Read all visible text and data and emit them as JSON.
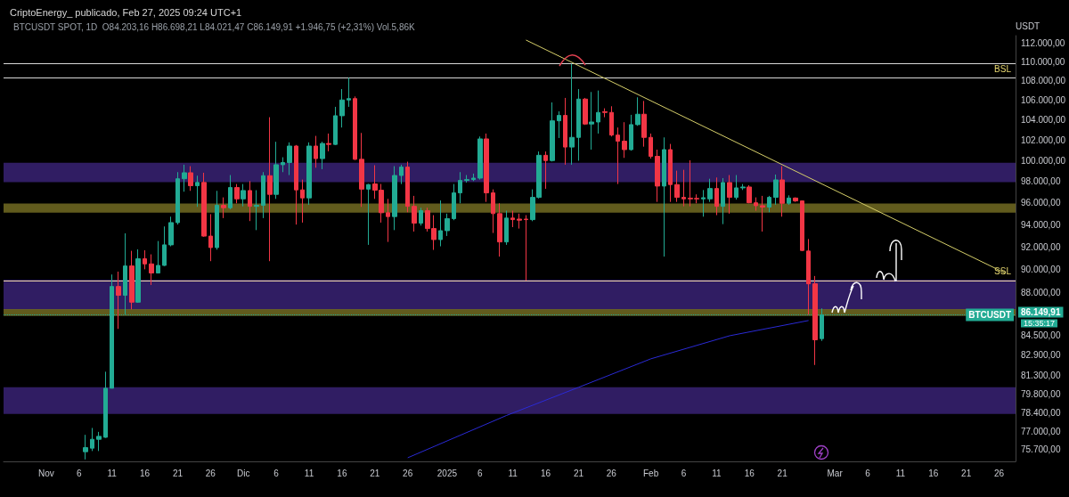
{
  "chart_data": {
    "type": "candlestick",
    "title": "CriptoEnergy_ publicado, Feb 27, 2025 09:24 UTC+1",
    "subtitle": "BTCUSDT SPOT, 1D  O84.203,16 H86.698,21 L84.021,47 C86.149,91 +1.946,75 (+2,31%) Vol.5,86K",
    "ylabel": "USDT",
    "annotations": [
      "BTCUSDT",
      "15:35:17"
    ],
    "log": true,
    "xlim": [
      "2024-10-25T12:00",
      "2025-03-28T12:00"
    ],
    "xticks": [
      {
        "value": "2024-11-01",
        "label": "Nov"
      },
      {
        "value": "2024-11-06",
        "label": "6"
      },
      {
        "value": "2024-11-11",
        "label": "11"
      },
      {
        "value": "2024-11-16",
        "label": "16"
      },
      {
        "value": "2024-11-21",
        "label": "21"
      },
      {
        "value": "2024-11-26",
        "label": "26"
      },
      {
        "value": "2024-12-01",
        "label": "Dic"
      },
      {
        "value": "2024-12-06",
        "label": "6"
      },
      {
        "value": "2024-12-11",
        "label": "11"
      },
      {
        "value": "2024-12-16",
        "label": "16"
      },
      {
        "value": "2024-12-21",
        "label": "21"
      },
      {
        "value": "2024-12-26",
        "label": "26"
      },
      {
        "value": "2025-01-01",
        "label": "2025"
      },
      {
        "value": "2025-01-06",
        "label": "6"
      },
      {
        "value": "2025-01-11",
        "label": "11"
      },
      {
        "value": "2025-01-16",
        "label": "16"
      },
      {
        "value": "2025-01-21",
        "label": "21"
      },
      {
        "value": "2025-01-26",
        "label": "26"
      },
      {
        "value": "2025-02-01",
        "label": "Feb"
      },
      {
        "value": "2025-02-06",
        "label": "6"
      },
      {
        "value": "2025-02-11",
        "label": "11"
      },
      {
        "value": "2025-02-16",
        "label": "16"
      },
      {
        "value": "2025-02-21",
        "label": "21"
      },
      {
        "value": "2025-03-01",
        "label": "Mar"
      },
      {
        "value": "2025-03-06",
        "label": "6"
      },
      {
        "value": "2025-03-11",
        "label": "11"
      },
      {
        "value": "2025-03-16",
        "label": "16"
      },
      {
        "value": "2025-03-21",
        "label": "21"
      },
      {
        "value": "2025-03-26",
        "label": "26"
      }
    ],
    "ylim": [
      74800,
      112800
    ],
    "yticks": [
      {
        "value": 112000,
        "label": "112.000,00"
      },
      {
        "value": 110000,
        "label": "110.000,00"
      },
      {
        "value": 108000,
        "label": "108.000,00"
      },
      {
        "value": 106000,
        "label": "106.000,00"
      },
      {
        "value": 104000,
        "label": "104.000,00"
      },
      {
        "value": 102000,
        "label": "102.000,00"
      },
      {
        "value": 100000,
        "label": "100.000,00"
      },
      {
        "value": 98000,
        "label": "98.000,00"
      },
      {
        "value": 96000,
        "label": "96.000,00"
      },
      {
        "value": 94000,
        "label": "94.000,00"
      },
      {
        "value": 92000,
        "label": "92.000,00"
      },
      {
        "value": 90000,
        "label": "90.000,00"
      },
      {
        "value": 88000,
        "label": "88.000,00"
      },
      {
        "value": 84500,
        "label": "84.500,00"
      },
      {
        "value": 82900,
        "label": "82.900,00"
      },
      {
        "value": 81300,
        "label": "81.300,00"
      },
      {
        "value": 79800,
        "label": "79.800,00"
      },
      {
        "value": 78400,
        "label": "78.400,00"
      },
      {
        "value": 77000,
        "label": "77.000,00"
      },
      {
        "value": 75700,
        "label": "75.700,00"
      }
    ],
    "ref_lines": [
      {
        "axis": "y",
        "value": 109770,
        "color": "#d8d8d8"
      },
      {
        "axis": "y",
        "value": 108310,
        "label": "BSL",
        "color": "#d8d8d8"
      },
      {
        "axis": "y",
        "value": 89060,
        "label": "SSL",
        "color": "#f0d8a8"
      },
      {
        "axis": "y",
        "value": 86149.91,
        "label": "86.149,91",
        "color": "#22ab94",
        "line_style": "dotted"
      }
    ],
    "bands": [
      {
        "axis": "y",
        "from": 97920,
        "to": 99780,
        "color": "#35206e"
      },
      {
        "axis": "y",
        "from": 86560,
        "to": 89140,
        "color": "#35206e"
      },
      {
        "axis": "y",
        "from": 78300,
        "to": 80340,
        "color": "#35206e"
      },
      {
        "axis": "y",
        "from": 95080,
        "to": 95920,
        "color": "#6b6520"
      },
      {
        "axis": "y",
        "from": 86060,
        "to": 86650,
        "color": "#6b6520"
      }
    ],
    "x": [
      "2024-11-07",
      "2024-11-08",
      "2024-11-09",
      "2024-11-10",
      "2024-11-11",
      "2024-11-12",
      "2024-11-13",
      "2024-11-14",
      "2024-11-15",
      "2024-11-16",
      "2024-11-17",
      "2024-11-18",
      "2024-11-19",
      "2024-11-20",
      "2024-11-21",
      "2024-11-22",
      "2024-11-23",
      "2024-11-24",
      "2024-11-25",
      "2024-11-26",
      "2024-11-27",
      "2024-11-28",
      "2024-11-29",
      "2024-11-30",
      "2024-12-01",
      "2024-12-02",
      "2024-12-03",
      "2024-12-04",
      "2024-12-05",
      "2024-12-06",
      "2024-12-07",
      "2024-12-08",
      "2024-12-09",
      "2024-12-10",
      "2024-12-11",
      "2024-12-12",
      "2024-12-13",
      "2024-12-14",
      "2024-12-15",
      "2024-12-16",
      "2024-12-17",
      "2024-12-18",
      "2024-12-19",
      "2024-12-20",
      "2024-12-21",
      "2024-12-22",
      "2024-12-23",
      "2024-12-24",
      "2024-12-25",
      "2024-12-26",
      "2024-12-27",
      "2024-12-28",
      "2024-12-29",
      "2024-12-30",
      "2024-12-31",
      "2025-01-01",
      "2025-01-02",
      "2025-01-03",
      "2025-01-04",
      "2025-01-05",
      "2025-01-06",
      "2025-01-07",
      "2025-01-08",
      "2025-01-09",
      "2025-01-10",
      "2025-01-11",
      "2025-01-12",
      "2025-01-13",
      "2025-01-14",
      "2025-01-15",
      "2025-01-16",
      "2025-01-17",
      "2025-01-18",
      "2025-01-19",
      "2025-01-20",
      "2025-01-21",
      "2025-01-22",
      "2025-01-23",
      "2025-01-24",
      "2025-01-25",
      "2025-01-26",
      "2025-01-27",
      "2025-01-28",
      "2025-01-29",
      "2025-01-30",
      "2025-01-31",
      "2025-02-01",
      "2025-02-02",
      "2025-02-03",
      "2025-02-04",
      "2025-02-05",
      "2025-02-06",
      "2025-02-07",
      "2025-02-08",
      "2025-02-09",
      "2025-02-10",
      "2025-02-11",
      "2025-02-12",
      "2025-02-13",
      "2025-02-14",
      "2025-02-15",
      "2025-02-16",
      "2025-02-17",
      "2025-02-18",
      "2025-02-19",
      "2025-02-20",
      "2025-02-21",
      "2025-02-22",
      "2025-02-23",
      "2025-02-24",
      "2025-02-25",
      "2025-02-26",
      "2025-02-27"
    ],
    "ohlc": [
      [
        75500,
        76740,
        74940,
        75800
      ],
      [
        75760,
        77250,
        75550,
        76410
      ],
      [
        76410,
        76960,
        75550,
        76630
      ],
      [
        76560,
        81560,
        76520,
        80270
      ],
      [
        80270,
        89580,
        80270,
        88550
      ],
      [
        88550,
        89830,
        85000,
        87800
      ],
      [
        87800,
        93210,
        86180,
        90320
      ],
      [
        90320,
        91650,
        86620,
        87220
      ],
      [
        87220,
        91780,
        87170,
        90950
      ],
      [
        90950,
        91700,
        90030,
        90500
      ],
      [
        90500,
        91340,
        88680,
        89710
      ],
      [
        89710,
        92520,
        89710,
        90370
      ],
      [
        90370,
        93830,
        90320,
        92180
      ],
      [
        92180,
        94720,
        92050,
        94180
      ],
      [
        94180,
        98880,
        94000,
        98250
      ],
      [
        98250,
        99590,
        97030,
        98820
      ],
      [
        98820,
        99450,
        97110,
        97590
      ],
      [
        97590,
        98540,
        95620,
        97900
      ],
      [
        97900,
        98820,
        92900,
        92960
      ],
      [
        92960,
        94950,
        90740,
        91940
      ],
      [
        91940,
        97110,
        91750,
        95760
      ],
      [
        95760,
        96500,
        94590,
        95540
      ],
      [
        95540,
        98600,
        95400,
        97420
      ],
      [
        97420,
        97750,
        95950,
        96360
      ],
      [
        96360,
        97750,
        95670,
        97140
      ],
      [
        97140,
        98030,
        94320,
        95670
      ],
      [
        95670,
        97170,
        93500,
        95760
      ],
      [
        95760,
        98880,
        94590,
        98540
      ],
      [
        98540,
        104260,
        90740,
        96780
      ],
      [
        96780,
        101820,
        96360,
        99590
      ],
      [
        99590,
        100310,
        98880,
        99800
      ],
      [
        99800,
        101760,
        98600,
        101400
      ],
      [
        101400,
        101500,
        94000,
        97200
      ],
      [
        97200,
        98170,
        94180,
        96450
      ],
      [
        96450,
        101760,
        95810,
        101400
      ],
      [
        101400,
        102400,
        99300,
        100180
      ],
      [
        100180,
        101820,
        99160,
        101650
      ],
      [
        101650,
        102630,
        100890,
        101560
      ],
      [
        101560,
        105310,
        101500,
        104410
      ],
      [
        104410,
        107130,
        103230,
        106010
      ],
      [
        106010,
        108310,
        105310,
        106150
      ],
      [
        106150,
        106370,
        100050,
        100110
      ],
      [
        100110,
        102690,
        95620,
        97270
      ],
      [
        97270,
        97760,
        92180,
        97700
      ],
      [
        97760,
        99540,
        96360,
        97170
      ],
      [
        97170,
        97760,
        94180,
        95080
      ],
      [
        95080,
        96360,
        92440,
        94730
      ],
      [
        94730,
        99450,
        93500,
        98560
      ],
      [
        98560,
        99590,
        97750,
        99360
      ],
      [
        99360,
        99880,
        95130,
        95670
      ],
      [
        95670,
        96640,
        93370,
        94130
      ],
      [
        94130,
        95540,
        93910,
        95270
      ],
      [
        95270,
        95540,
        93370,
        93640
      ],
      [
        93640,
        94860,
        91730,
        92650
      ],
      [
        92650,
        96220,
        92050,
        93450
      ],
      [
        93450,
        95000,
        92970,
        94540
      ],
      [
        94540,
        97750,
        94400,
        96920
      ],
      [
        96920,
        98880,
        95950,
        98090
      ],
      [
        98090,
        98600,
        97890,
        98170
      ],
      [
        98170,
        98740,
        98030,
        98310
      ],
      [
        98310,
        102340,
        98170,
        102100
      ],
      [
        102100,
        102630,
        96080,
        96920
      ],
      [
        96920,
        97250,
        93240,
        95000
      ],
      [
        95000,
        95950,
        91140,
        92440
      ],
      [
        92440,
        95270,
        92180,
        94590
      ],
      [
        94590,
        95270,
        93770,
        94450
      ],
      [
        94500,
        95000,
        93640,
        94400
      ],
      [
        94500,
        94860,
        89060,
        94450
      ],
      [
        94450,
        97250,
        94310,
        96500
      ],
      [
        96500,
        100870,
        96400,
        100500
      ],
      [
        100500,
        100870,
        97300,
        99990
      ],
      [
        99990,
        105760,
        99900,
        103900
      ],
      [
        103900,
        104850,
        102190,
        104440
      ],
      [
        104440,
        106220,
        99590,
        101300
      ],
      [
        101300,
        109770,
        99590,
        102250
      ],
      [
        102250,
        107130,
        99970,
        106100
      ],
      [
        106100,
        106220,
        103490,
        103580
      ],
      [
        103580,
        106830,
        101050,
        103780
      ],
      [
        103780,
        106980,
        102630,
        104740
      ],
      [
        104820,
        105160,
        104260,
        104740
      ],
      [
        104740,
        105370,
        102340,
        102480
      ],
      [
        102480,
        103230,
        97750,
        101880
      ],
      [
        101880,
        103760,
        100250,
        101050
      ],
      [
        101050,
        104500,
        100950,
        103520
      ],
      [
        103520,
        106280,
        103400,
        104560
      ],
      [
        104560,
        105910,
        101340,
        102250
      ],
      [
        102250,
        102630,
        100180,
        100400
      ],
      [
        100400,
        101050,
        96080,
        97560
      ],
      [
        97560,
        102250,
        91140,
        101050
      ],
      [
        101050,
        101610,
        96080,
        97700
      ],
      [
        97700,
        99020,
        96080,
        96500
      ],
      [
        96500,
        99100,
        95670,
        96360
      ],
      [
        96430,
        100020,
        95670,
        96360
      ],
      [
        96400,
        96780,
        95950,
        96360
      ],
      [
        96360,
        97190,
        94720,
        96470
      ],
      [
        96360,
        98250,
        96080,
        97330
      ],
      [
        97330,
        98370,
        94860,
        95670
      ],
      [
        95670,
        98310,
        94040,
        97890
      ],
      [
        97890,
        98600,
        95000,
        96500
      ],
      [
        96500,
        98600,
        96300,
        97390
      ],
      [
        97390,
        97750,
        97190,
        97470
      ],
      [
        97470,
        97640,
        95950,
        96000
      ],
      [
        96000,
        96500,
        95270,
        95730
      ],
      [
        95730,
        96640,
        93370,
        95600
      ],
      [
        95600,
        96640,
        95130,
        96500
      ],
      [
        96500,
        98650,
        95810,
        98140
      ],
      [
        98140,
        99450,
        94720,
        95950
      ],
      [
        95950,
        96690,
        95810,
        96440
      ],
      [
        96440,
        96500,
        96080,
        96170
      ],
      [
        96170,
        96220,
        91630,
        91680
      ],
      [
        91630,
        92700,
        86180,
        88780
      ],
      [
        88780,
        89450,
        82090,
        84110
      ],
      [
        84203.16,
        86698.21,
        84021.47,
        86149.91
      ]
    ],
    "colors": [
      "#22ab94",
      "#22ab94",
      "#22ab94",
      "#22ab94",
      "#22ab94",
      "#f23645",
      "#22ab94",
      "#f23645",
      "#22ab94",
      "#f23645",
      "#f23645",
      "#22ab94",
      "#22ab94",
      "#22ab94",
      "#22ab94",
      "#22ab94",
      "#f23645",
      "#22ab94",
      "#f23645",
      "#f23645",
      "#22ab94",
      "#f23645",
      "#22ab94",
      "#f23645",
      "#22ab94",
      "#f23645",
      "#22ab94",
      "#22ab94",
      "#f23645",
      "#22ab94",
      "#22ab94",
      "#22ab94",
      "#f23645",
      "#f23645",
      "#22ab94",
      "#f23645",
      "#22ab94",
      "#f23645",
      "#22ab94",
      "#22ab94",
      "#22ab94",
      "#f23645",
      "#f23645",
      "#22ab94",
      "#f23645",
      "#f23645",
      "#f23645",
      "#22ab94",
      "#22ab94",
      "#f23645",
      "#f23645",
      "#22ab94",
      "#f23645",
      "#f23645",
      "#22ab94",
      "#22ab94",
      "#22ab94",
      "#22ab94",
      "#22ab94",
      "#22ab94",
      "#22ab94",
      "#f23645",
      "#f23645",
      "#f23645",
      "#22ab94",
      "#f23645",
      "#f23645",
      "#f23645",
      "#22ab94",
      "#22ab94",
      "#f23645",
      "#22ab94",
      "#22ab94",
      "#f23645",
      "#22ab94",
      "#22ab94",
      "#f23645",
      "#22ab94",
      "#22ab94",
      "#f23645",
      "#f23645",
      "#f23645",
      "#f23645",
      "#22ab94",
      "#22ab94",
      "#f23645",
      "#f23645",
      "#f23645",
      "#22ab94",
      "#f23645",
      "#f23645",
      "#f23645",
      "#f23645",
      "#f23645",
      "#22ab94",
      "#22ab94",
      "#f23645",
      "#22ab94",
      "#f23645",
      "#22ab94",
      "#22ab94",
      "#f23645",
      "#f23645",
      "#f23645",
      "#22ab94",
      "#22ab94",
      "#f23645",
      "#22ab94",
      "#f23645",
      "#f23645",
      "#f23645",
      "#f23645",
      "#22ab94"
    ],
    "series": [
      {
        "type": "line",
        "color": "#d6cf6a",
        "x": [
          "2025-01-13",
          "2025-03-27"
        ],
        "values": [
          112320,
          89680
        ]
      },
      {
        "type": "line",
        "color": "#2a2ad6",
        "x": [
          "2024-12-26",
          "2025-01-10",
          "2025-01-21",
          "2025-02-01",
          "2025-02-13",
          "2025-02-25"
        ],
        "values": [
          75060,
          78180,
          80340,
          82580,
          84440,
          85690
        ]
      }
    ]
  }
}
